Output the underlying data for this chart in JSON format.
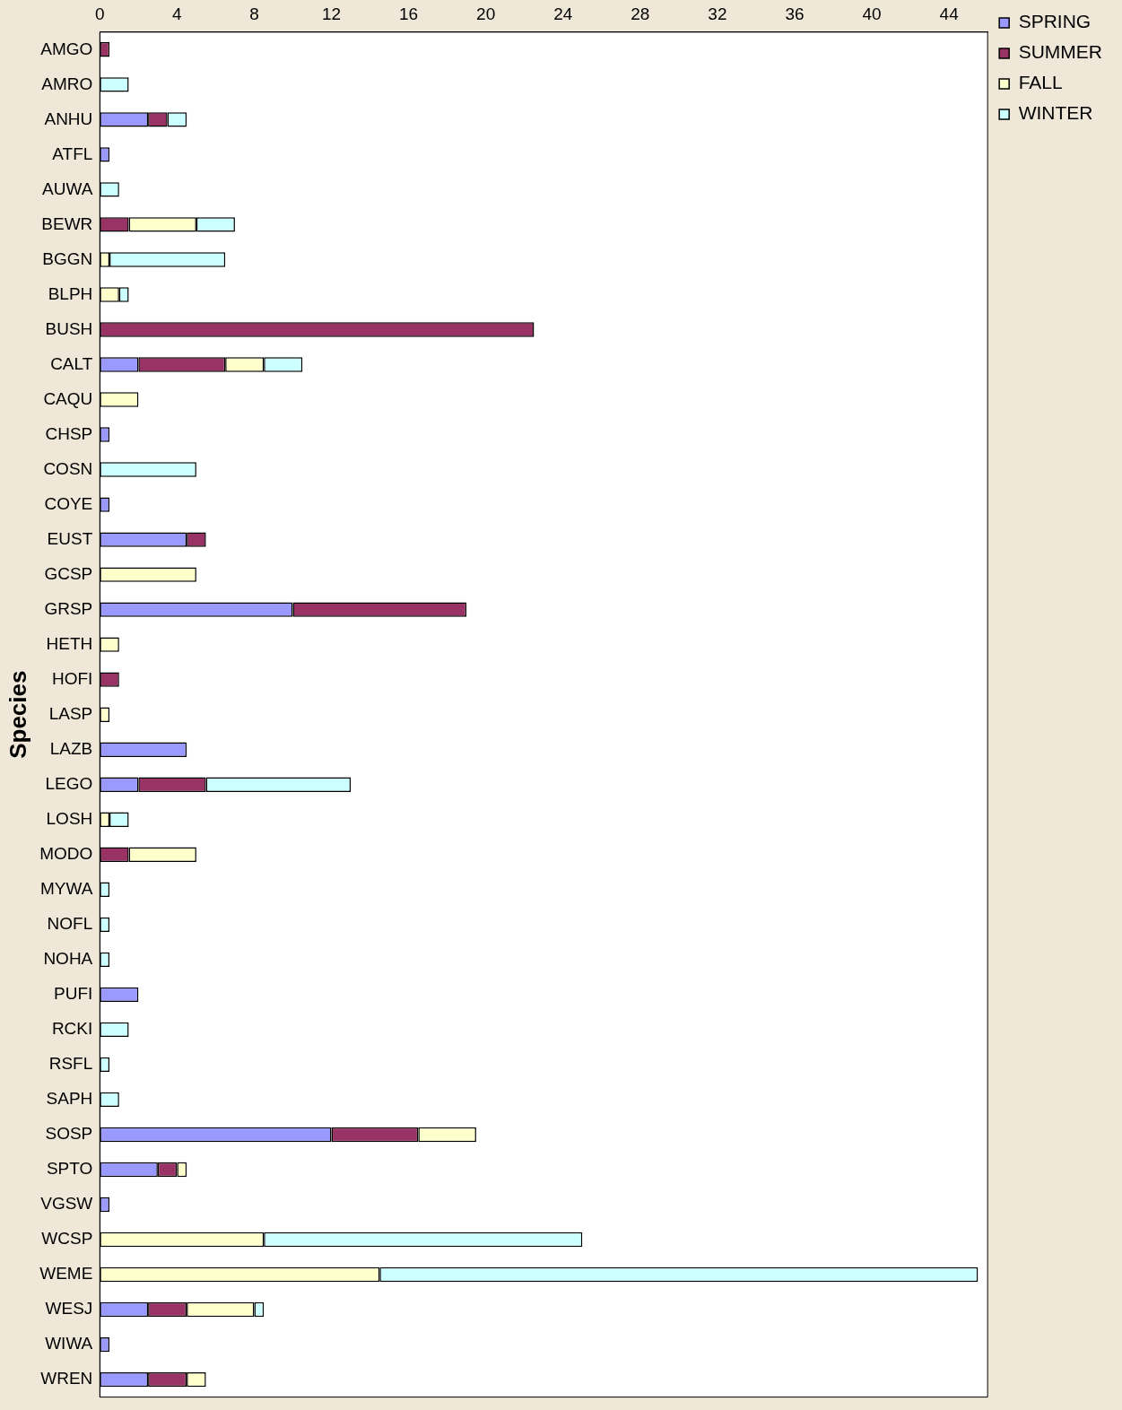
{
  "chart_data": {
    "type": "bar",
    "orientation": "horizontal",
    "stacked": true,
    "ylabel": "Species",
    "legend": "top right",
    "grid": false,
    "categories": [
      "AMGO",
      "AMRO",
      "ANHU",
      "ATFL",
      "AUWA",
      "BEWR",
      "BGGN",
      "BLPH",
      "BUSH",
      "CALT",
      "CAQU",
      "CHSP",
      "COSN",
      "COYE",
      "EUST",
      "GCSP",
      "GRSP",
      "HETH",
      "HOFI",
      "LASP",
      "LAZB",
      "LEGO",
      "LOSH",
      "MODO",
      "MYWA",
      "NOFL",
      "NOHA",
      "PUFI",
      "RCKI",
      "RSFL",
      "SAPH",
      "SOSP",
      "SPTO",
      "VGSW",
      "WCSP",
      "WEME",
      "WESJ",
      "WIWA",
      "WREN"
    ],
    "xlim": [
      0,
      46
    ],
    "xticks": [
      0,
      4,
      8,
      12,
      16,
      20,
      24,
      28,
      32,
      36,
      40,
      44
    ],
    "series": [
      {
        "name": "SPRING",
        "color": "#9999ff",
        "values": [
          null,
          null,
          2.5,
          0.5,
          null,
          null,
          null,
          null,
          null,
          2,
          null,
          0.5,
          null,
          0.5,
          4.5,
          null,
          10,
          null,
          null,
          null,
          4.5,
          2,
          null,
          null,
          null,
          null,
          null,
          2,
          null,
          null,
          null,
          12,
          3,
          0.5,
          null,
          null,
          2.5,
          0.5,
          2.5
        ]
      },
      {
        "name": "SUMMER",
        "color": "#993366",
        "values": [
          0.5,
          null,
          1,
          null,
          null,
          1.5,
          null,
          null,
          22.5,
          4.5,
          null,
          null,
          null,
          null,
          1,
          null,
          9,
          null,
          1,
          null,
          null,
          3.5,
          null,
          1.5,
          null,
          null,
          null,
          null,
          null,
          null,
          null,
          4.5,
          1,
          null,
          null,
          null,
          2,
          null,
          2
        ]
      },
      {
        "name": "FALL",
        "color": "#ffffcc",
        "values": [
          null,
          null,
          null,
          null,
          null,
          3.5,
          0.5,
          1,
          null,
          2,
          2,
          null,
          null,
          null,
          null,
          5,
          null,
          1,
          null,
          0.5,
          null,
          null,
          0.5,
          3.5,
          null,
          null,
          null,
          null,
          null,
          null,
          null,
          3,
          0.5,
          null,
          8.5,
          14.5,
          3.5,
          null,
          1
        ]
      },
      {
        "name": "WINTER",
        "color": "#ccffff",
        "values": [
          null,
          1.5,
          1,
          null,
          1,
          2,
          6,
          0.5,
          null,
          2,
          null,
          null,
          5,
          null,
          null,
          null,
          null,
          null,
          null,
          null,
          null,
          7.5,
          1,
          null,
          0.5,
          0.5,
          0.5,
          null,
          1.5,
          0.5,
          1,
          null,
          null,
          null,
          16.5,
          31,
          0.5,
          null,
          null
        ]
      }
    ]
  }
}
